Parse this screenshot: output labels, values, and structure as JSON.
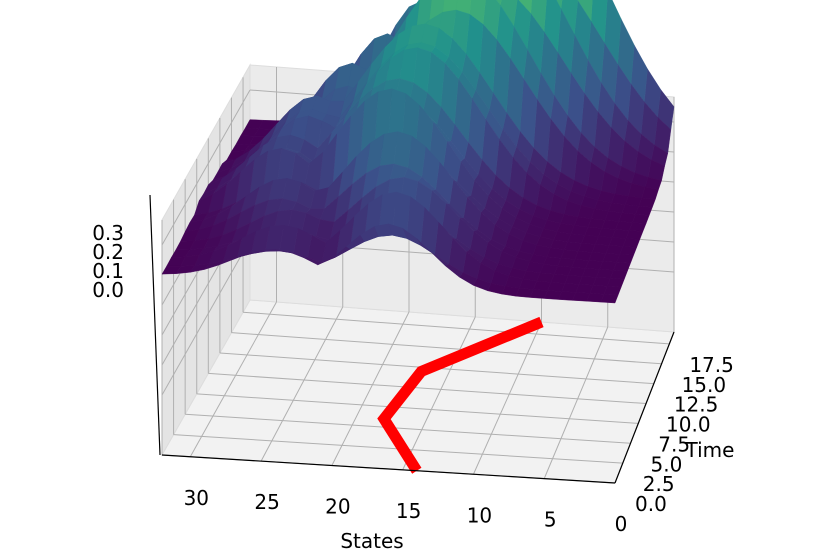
{
  "chart_data": {
    "type": "surface3d",
    "title": "",
    "xlabel": "States",
    "ylabel": "Time",
    "zlabel": "",
    "x_ticks": [
      "30",
      "25",
      "20",
      "15",
      "10",
      "5",
      "0"
    ],
    "y_ticks": [
      "0.0",
      "2.5",
      "5.0",
      "7.5",
      "10.0",
      "12.5",
      "15.0",
      "17.5"
    ],
    "z_ticks": [
      "0.0",
      "0.1",
      "0.2",
      "0.3"
    ],
    "xlim": [
      0,
      32
    ],
    "ylim": [
      0,
      19
    ],
    "zlim": [
      0,
      0.35
    ],
    "grid": true,
    "colormap": "viridis",
    "colormap_colors": [
      "#440154",
      "#3b528b",
      "#21918c",
      "#5ec962",
      "#fde725"
    ],
    "trajectory_color": "#ff0000",
    "trajectory": {
      "name": "",
      "points": [
        {
          "state": 14,
          "time": 0
        },
        {
          "state": 18,
          "time": 6
        },
        {
          "state": 17,
          "time": 12
        },
        {
          "state": 10,
          "time": 19
        }
      ]
    },
    "density_peaks": [
      {
        "time": 0,
        "state": 16,
        "value": 0.08
      },
      {
        "time": 3,
        "state": 16,
        "value": 0.1
      },
      {
        "time": 6,
        "state": 17,
        "value": 0.14
      },
      {
        "time": 9,
        "state": 18,
        "value": 0.18
      },
      {
        "time": 12,
        "state": 17,
        "value": 0.22
      },
      {
        "time": 14,
        "state": 15,
        "value": 0.26
      },
      {
        "time": 16,
        "state": 13,
        "value": 0.29
      },
      {
        "time": 18,
        "state": 11,
        "value": 0.33
      }
    ]
  }
}
